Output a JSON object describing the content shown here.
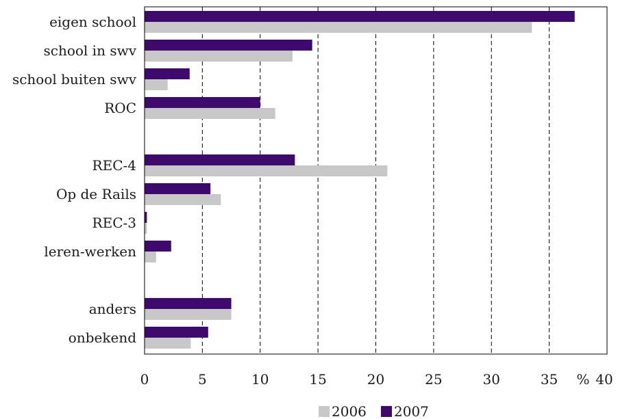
{
  "chart_data": {
    "type": "bar",
    "orientation": "horizontal",
    "categories": [
      "eigen school",
      "school in swv",
      "school buiten swv",
      "ROC",
      "",
      "REC-4",
      "Op de Rails",
      "REC-3",
      "leren-werken",
      "",
      "anders",
      "onbekend"
    ],
    "series": [
      {
        "name": "2006",
        "color": "#c8c8c8",
        "values": [
          33.5,
          12.8,
          2.0,
          11.3,
          null,
          21.0,
          6.6,
          0.2,
          1.0,
          null,
          7.5,
          4.0
        ]
      },
      {
        "name": "2007",
        "color": "#3e0a6e",
        "values": [
          37.2,
          14.5,
          3.9,
          10.0,
          null,
          13.0,
          5.7,
          0.2,
          2.3,
          null,
          7.5,
          5.5
        ]
      }
    ],
    "xlim": [
      0,
      40
    ],
    "xticks": [
      "0",
      "5",
      "10",
      "15",
      "20",
      "25",
      "30",
      "35",
      "40"
    ],
    "xunit": "%",
    "grid": "vertical dashed",
    "legend_position": "bottom-center",
    "title": "",
    "xlabel": "",
    "ylabel": ""
  }
}
